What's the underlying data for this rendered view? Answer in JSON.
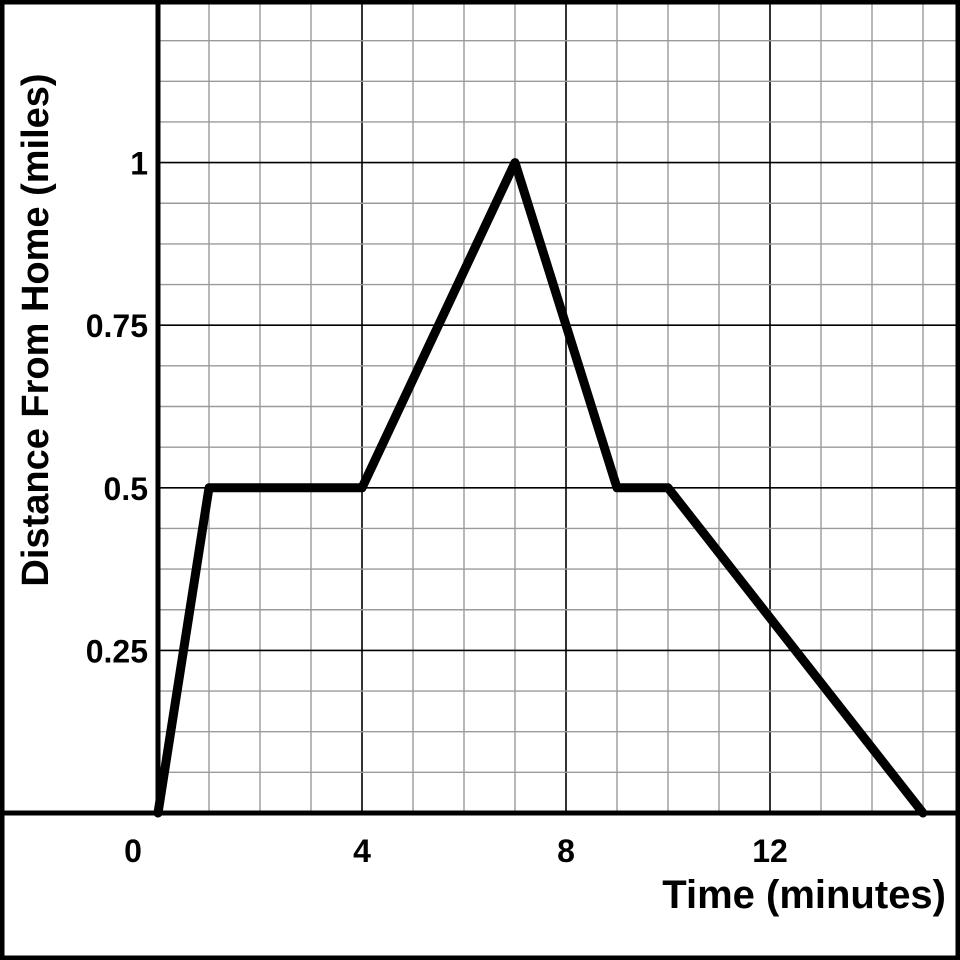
{
  "chart_data": {
    "type": "line",
    "title": "",
    "xlabel": "Time (minutes)",
    "ylabel": "Distance From Home (miles)",
    "xlim": [
      0,
      15.6
    ],
    "ylim": [
      0,
      1.25
    ],
    "x_ticks": [
      0,
      4,
      8,
      12
    ],
    "x_tick_labels": [
      "0",
      "4",
      "8",
      "12"
    ],
    "y_ticks": [
      0.25,
      0.5,
      0.75,
      1
    ],
    "y_tick_labels": [
      "0.25",
      "0.5",
      "0.75",
      "1"
    ],
    "grid": true,
    "minor_grid_x_step": 1,
    "minor_grid_y_step": 0.0625,
    "series": [
      {
        "x": [
          0,
          1,
          4,
          7,
          9,
          10,
          15
        ],
        "y": [
          0,
          0.5,
          0.5,
          1,
          0.5,
          0.5,
          0
        ],
        "color": "#000000"
      }
    ],
    "colors": {
      "line": "#000000",
      "minor_grid": "#9a9a9a",
      "major_grid": "#000000"
    }
  }
}
